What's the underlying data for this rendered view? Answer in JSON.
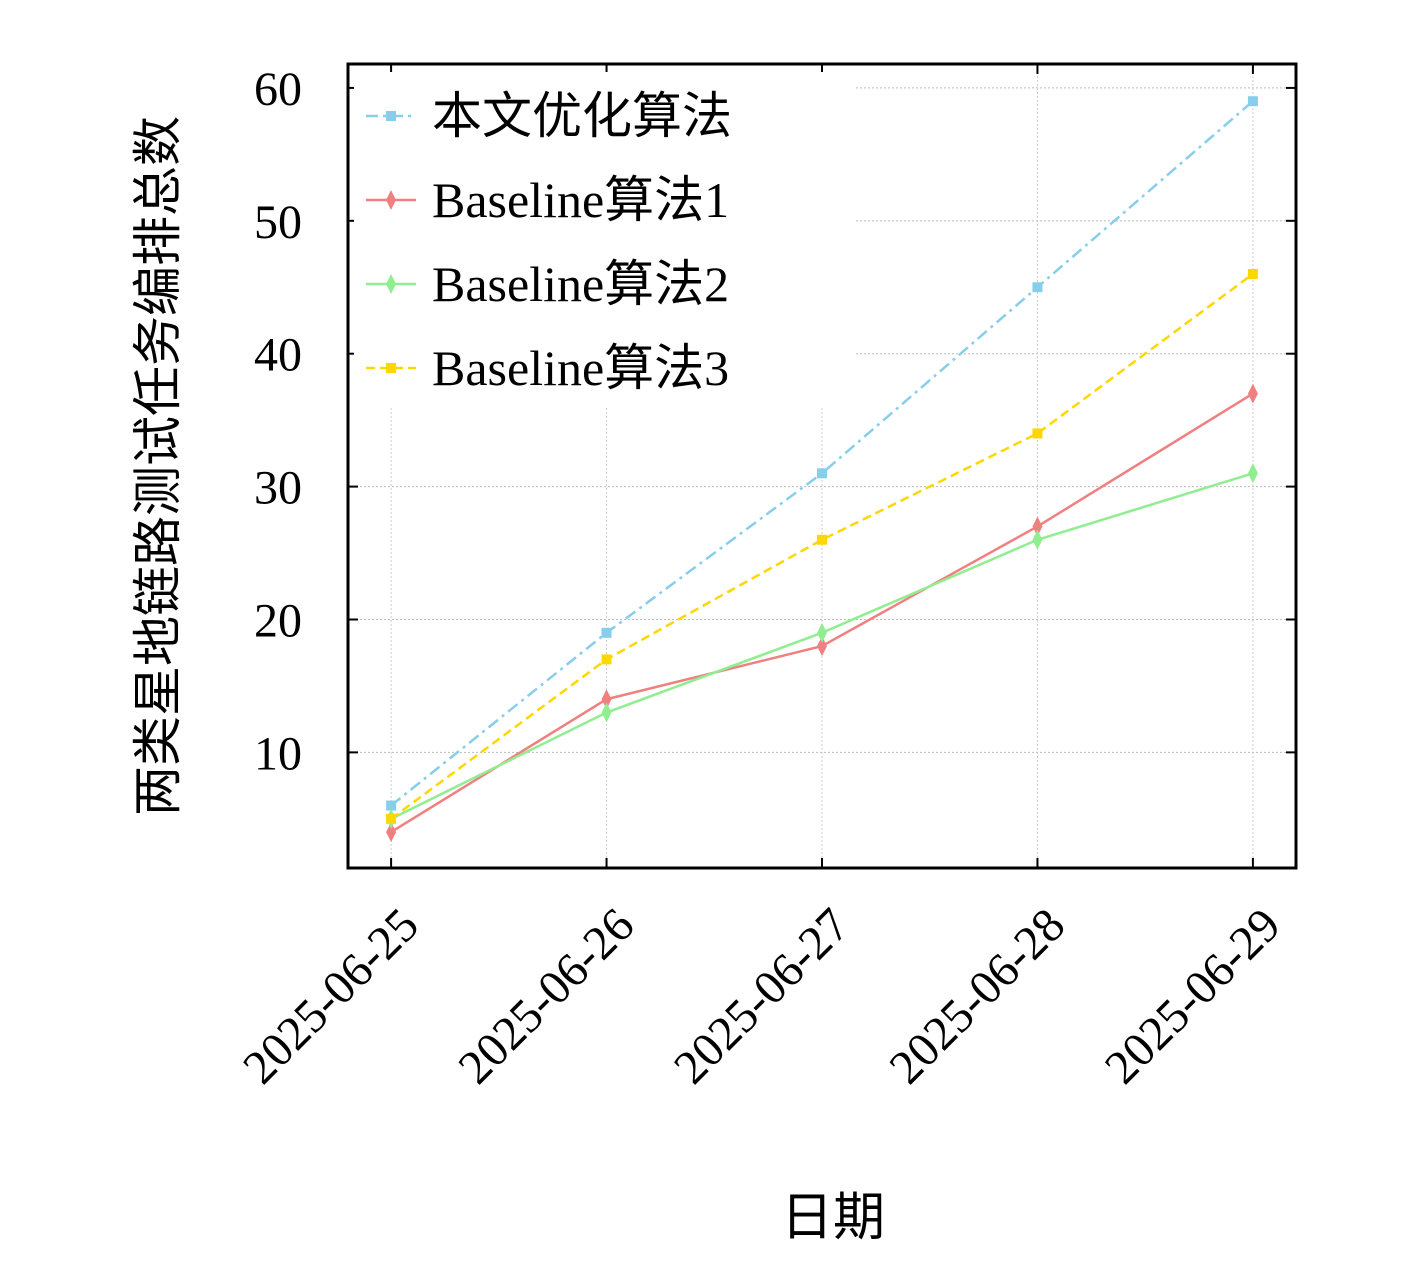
{
  "chart_data": {
    "type": "line",
    "x_label": "日期",
    "y_label": "两类星地链路测试任务编排总数",
    "categories": [
      "2025-06-25",
      "2025-06-26",
      "2025-06-27",
      "2025-06-28",
      "2025-06-29"
    ],
    "series": [
      {
        "name": "本文优化算法",
        "color": "#87ceeb",
        "dash": "dashdot",
        "marker": "square",
        "values": [
          6,
          19,
          31,
          45,
          59
        ]
      },
      {
        "name": "Baseline算法1",
        "color": "#f08080",
        "dash": "solid",
        "marker": "diamond",
        "values": [
          4,
          14,
          18,
          27,
          37
        ]
      },
      {
        "name": "Baseline算法2",
        "color": "#90ee90",
        "dash": "solid",
        "marker": "diamond",
        "values": [
          5,
          13,
          19,
          26,
          31
        ]
      },
      {
        "name": "Baseline算法3",
        "color": "#ffd700",
        "dash": "dashed",
        "marker": "square",
        "values": [
          5,
          17,
          26,
          34,
          46
        ]
      }
    ],
    "ylim": [
      1.3,
      61.8
    ],
    "yticks": [
      10,
      20,
      30,
      40,
      50,
      60
    ],
    "grid": true,
    "legend": "upper left"
  }
}
